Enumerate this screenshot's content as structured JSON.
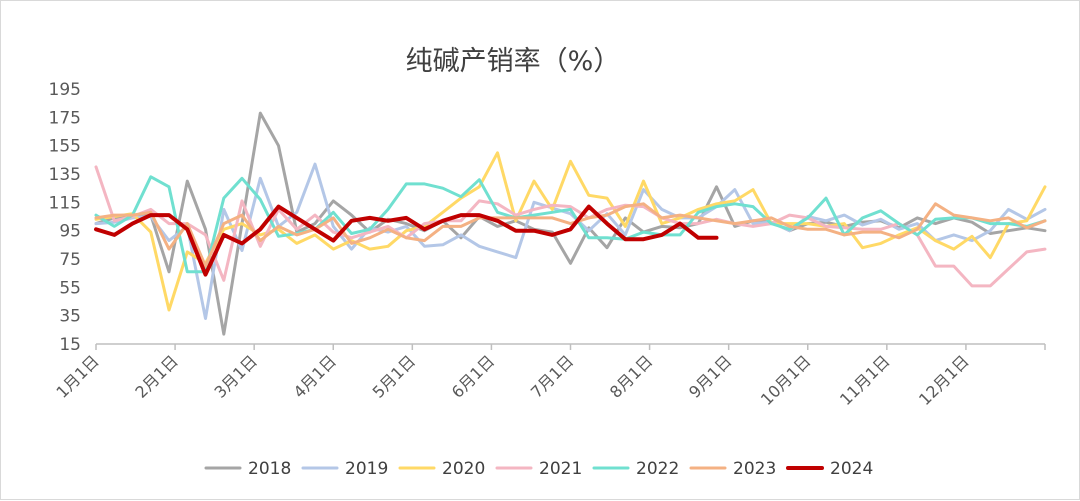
{
  "chart_data": {
    "type": "line",
    "title": "纯碱产销率（%）",
    "xlabel": "",
    "ylabel": "",
    "ylim": [
      15,
      195
    ],
    "yticks": [
      15,
      35,
      55,
      75,
      95,
      115,
      135,
      155,
      175,
      195
    ],
    "x_tick_labels": [
      "1月1日",
      "2月1日",
      "3月1日",
      "4月1日",
      "5月1日",
      "6月1日",
      "7月1日",
      "8月1日",
      "9月1日",
      "10月1日",
      "11月1日",
      "12月1日"
    ],
    "x_unit": "week of year (0 = 1月1日, 52 ≈ 12月31日)",
    "xlim": [
      0,
      52
    ],
    "grid": false,
    "legend_position": "bottom",
    "series": [
      {
        "name": "2018",
        "color": "#a5a5a5",
        "width": 3,
        "x": [
          0,
          1,
          2,
          3,
          4,
          5,
          6,
          7,
          8,
          9,
          10,
          11,
          12,
          13,
          14,
          15,
          16,
          17,
          18,
          19,
          20,
          21,
          22,
          23,
          24,
          25,
          26,
          27,
          28,
          29,
          30,
          31,
          32,
          33,
          34,
          35,
          36,
          37,
          38,
          39,
          40,
          41,
          42,
          43,
          44,
          45,
          46,
          47,
          48,
          49,
          50,
          51,
          52
        ],
        "y": [
          100,
          104,
          106,
          106,
          66,
          130,
          96,
          22,
          100,
          178,
          155,
          94,
          100,
          116,
          106,
          94,
          103,
          100,
          95,
          102,
          90,
          105,
          98,
          102,
          96,
          94,
          72,
          97,
          83,
          104,
          94,
          98,
          97,
          100,
          126,
          98,
          102,
          101,
          95,
          100,
          101,
          98,
          101,
          102,
          97,
          104,
          100,
          104,
          101,
          93,
          95,
          97,
          95
        ]
      },
      {
        "name": "2019",
        "color": "#b4c7e7",
        "width": 3,
        "x": [
          0,
          1,
          2,
          3,
          4,
          5,
          6,
          7,
          8,
          9,
          10,
          11,
          12,
          13,
          14,
          15,
          16,
          17,
          18,
          19,
          20,
          21,
          22,
          23,
          24,
          25,
          26,
          27,
          28,
          29,
          30,
          31,
          32,
          33,
          34,
          35,
          36,
          37,
          38,
          39,
          40,
          41,
          42,
          43,
          44,
          45,
          46,
          47,
          48,
          49,
          50,
          51,
          52
        ],
        "y": [
          100,
          101,
          104,
          105,
          88,
          98,
          33,
          110,
          81,
          132,
          98,
          108,
          142,
          98,
          82,
          97,
          94,
          98,
          84,
          85,
          92,
          84,
          80,
          76,
          115,
          111,
          107,
          95,
          107,
          92,
          124,
          110,
          104,
          104,
          112,
          124,
          100,
          101,
          95,
          105,
          102,
          106,
          99,
          103,
          96,
          100,
          88,
          92,
          88,
          95,
          110,
          103,
          110
        ]
      },
      {
        "name": "2020",
        "color": "#ffd966",
        "width": 3,
        "x": [
          0,
          1,
          2,
          3,
          4,
          5,
          6,
          7,
          8,
          9,
          10,
          11,
          12,
          13,
          14,
          15,
          16,
          17,
          18,
          19,
          20,
          21,
          22,
          23,
          24,
          25,
          26,
          27,
          28,
          29,
          30,
          31,
          32,
          33,
          34,
          35,
          36,
          37,
          38,
          39,
          40,
          41,
          42,
          43,
          44,
          45,
          46,
          47,
          48,
          49,
          50,
          51,
          52
        ],
        "y": [
          103,
          105,
          107,
          94,
          39,
          80,
          72,
          96,
          100,
          92,
          96,
          86,
          92,
          82,
          88,
          82,
          84,
          95,
          98,
          108,
          118,
          126,
          150,
          102,
          130,
          110,
          144,
          120,
          118,
          98,
          130,
          100,
          104,
          110,
          114,
          116,
          124,
          100,
          100,
          100,
          98,
          100,
          83,
          86,
          92,
          97,
          88,
          82,
          91,
          76,
          100,
          102,
          126
        ]
      },
      {
        "name": "2021",
        "color": "#f4b6c2",
        "width": 3,
        "x": [
          0,
          1,
          2,
          3,
          4,
          5,
          6,
          7,
          8,
          9,
          10,
          11,
          12,
          13,
          14,
          15,
          16,
          17,
          18,
          19,
          20,
          21,
          22,
          23,
          24,
          25,
          26,
          27,
          28,
          29,
          30,
          31,
          32,
          33,
          34,
          35,
          36,
          37,
          38,
          39,
          40,
          41,
          42,
          43,
          44,
          45,
          46,
          47,
          48,
          49,
          50,
          51,
          52
        ],
        "y": [
          140,
          102,
          105,
          110,
          100,
          100,
          92,
          60,
          116,
          84,
          110,
          96,
          106,
          94,
          90,
          94,
          98,
          90,
          100,
          102,
          102,
          116,
          114,
          106,
          110,
          113,
          112,
          104,
          110,
          113,
          112,
          104,
          100,
          100,
          103,
          100,
          98,
          100,
          106,
          104,
          98,
          97,
          96,
          96,
          100,
          92,
          70,
          70,
          56,
          56,
          68,
          80,
          82
        ]
      },
      {
        "name": "2022",
        "color": "#70e0d0",
        "width": 3,
        "x": [
          0,
          1,
          2,
          3,
          4,
          5,
          6,
          7,
          8,
          9,
          10,
          11,
          12,
          13,
          14,
          15,
          16,
          17,
          18,
          19,
          20,
          21,
          22,
          23,
          24,
          25,
          26,
          27,
          28,
          29,
          30,
          31,
          32,
          33,
          34,
          35,
          36,
          37,
          38,
          39,
          40,
          41,
          42,
          43,
          44,
          45,
          46,
          47,
          48,
          49,
          50,
          51,
          52
        ],
        "y": [
          106,
          98,
          106,
          133,
          126,
          66,
          66,
          118,
          132,
          117,
          91,
          93,
          96,
          108,
          93,
          96,
          110,
          128,
          128,
          125,
          119,
          131,
          108,
          104,
          106,
          108,
          110,
          90,
          90,
          89,
          94,
          92,
          92,
          108,
          112,
          114,
          112,
          100,
          96,
          104,
          118,
          92,
          104,
          109,
          100,
          92,
          103,
          104,
          104,
          100,
          100,
          98,
          102
        ]
      },
      {
        "name": "2023",
        "color": "#f4b183",
        "width": 3,
        "x": [
          0,
          1,
          2,
          3,
          4,
          5,
          6,
          7,
          8,
          9,
          10,
          11,
          12,
          13,
          14,
          15,
          16,
          17,
          18,
          19,
          20,
          21,
          22,
          23,
          24,
          25,
          26,
          27,
          28,
          29,
          30,
          31,
          32,
          33,
          34,
          35,
          36,
          37,
          38,
          39,
          40,
          41,
          42,
          43,
          44,
          45,
          46,
          47,
          48,
          49,
          50,
          51,
          52
        ],
        "y": [
          104,
          106,
          106,
          108,
          82,
          100,
          70,
          100,
          106,
          88,
          98,
          92,
          96,
          104,
          86,
          90,
          96,
          90,
          88,
          98,
          98,
          104,
          104,
          104,
          104,
          104,
          100,
          104,
          106,
          112,
          114,
          104,
          106,
          104,
          102,
          100,
          102,
          104,
          98,
          96,
          96,
          92,
          94,
          94,
          90,
          96,
          114,
          106,
          104,
          102,
          104,
          97,
          102
        ]
      },
      {
        "name": "2024",
        "color": "#c00000",
        "width": 4,
        "x": [
          0,
          1,
          2,
          3,
          4,
          5,
          6,
          7,
          8,
          9,
          10,
          11,
          12,
          13,
          14,
          15,
          16,
          17,
          18,
          19,
          20,
          21,
          22,
          23,
          24,
          25,
          26,
          27,
          28,
          29,
          30,
          31,
          32,
          33,
          34
        ],
        "y": [
          96,
          92,
          100,
          106,
          106,
          96,
          64,
          92,
          86,
          96,
          112,
          104,
          96,
          88,
          102,
          104,
          102,
          104,
          96,
          102,
          106,
          106,
          102,
          95,
          95,
          92,
          96,
          112,
          100,
          89,
          89,
          92,
          100,
          90,
          90
        ]
      }
    ]
  }
}
